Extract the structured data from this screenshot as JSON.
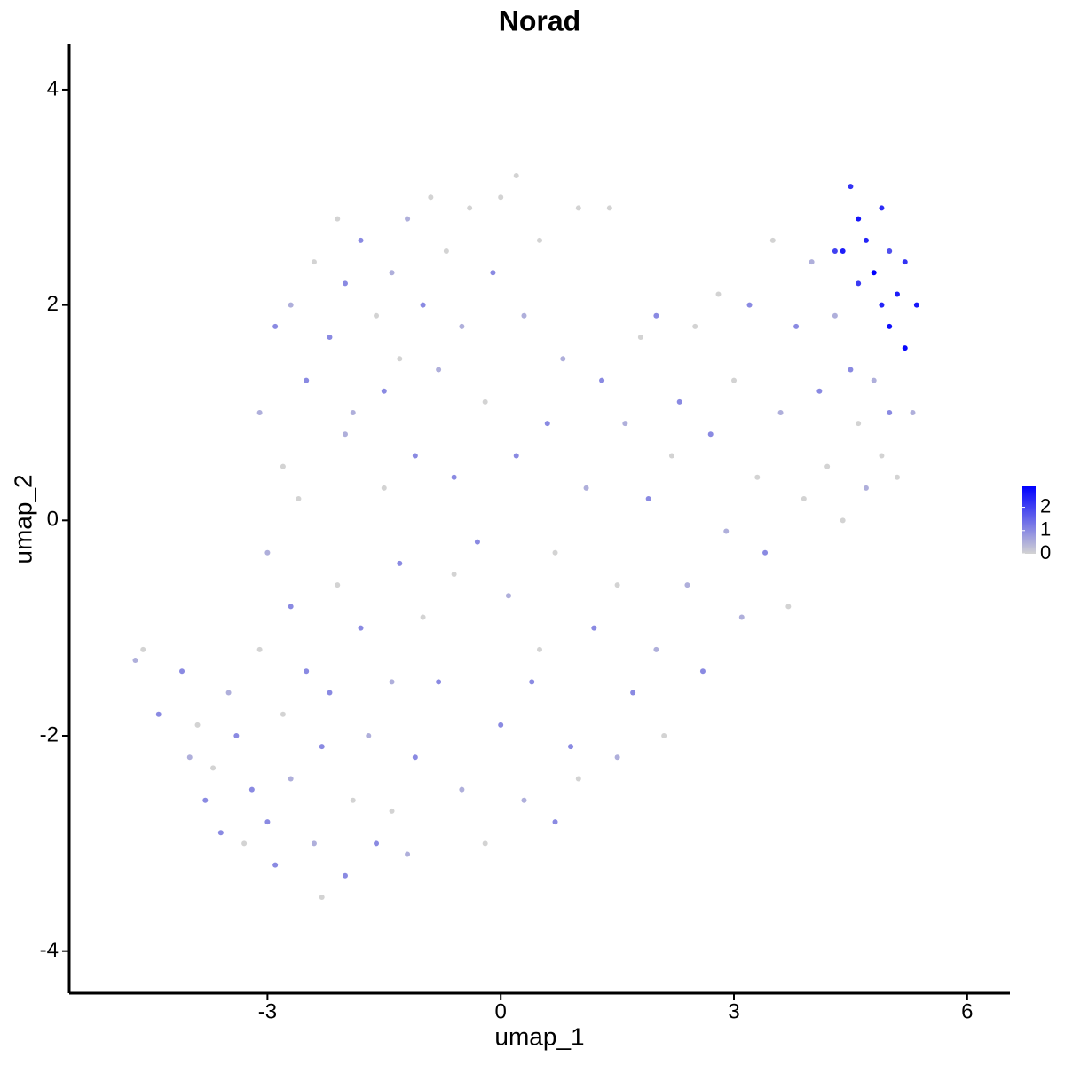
{
  "chart_data": {
    "type": "scatter",
    "title": "Norad",
    "x_label": "umap_1",
    "y_label": "umap_2",
    "xlim": [
      -5.55,
      6.55
    ],
    "ylim": [
      -4.39,
      4.42
    ],
    "xticks": [
      -3,
      0,
      3,
      6
    ],
    "yticks": [
      -4,
      -2,
      0,
      2,
      4
    ],
    "x": [
      -4.7,
      -4.6,
      -4.4,
      -4.1,
      -4.0,
      -3.9,
      -3.8,
      -3.7,
      -3.6,
      -3.5,
      -3.4,
      -3.3,
      -3.2,
      -3.1,
      -3.0,
      -3.0,
      -2.9,
      -2.8,
      -2.7,
      -2.7,
      -2.6,
      -2.5,
      -2.4,
      -2.3,
      -2.3,
      -2.2,
      -2.1,
      -2.0,
      -2.0,
      -1.9,
      -1.8,
      -1.7,
      -1.6,
      -1.5,
      -1.4,
      -1.4,
      -1.3,
      -1.2,
      -1.1,
      -1.0,
      -3.1,
      -2.9,
      -2.8,
      -2.7,
      -2.5,
      -2.4,
      -2.2,
      -2.1,
      -2.0,
      -1.9,
      -1.8,
      -1.6,
      -1.5,
      -1.4,
      -1.3,
      -1.2,
      -1.1,
      -1.0,
      -0.9,
      -0.8,
      -0.7,
      -0.6,
      -0.5,
      -0.4,
      -0.3,
      -0.2,
      -0.1,
      0.0,
      0.1,
      0.2,
      0.2,
      0.3,
      0.4,
      0.5,
      0.6,
      0.7,
      0.8,
      0.9,
      1.0,
      1.1,
      1.2,
      1.3,
      1.4,
      1.5,
      1.6,
      1.7,
      1.8,
      1.9,
      2.0,
      2.0,
      2.1,
      2.2,
      2.3,
      2.4,
      2.5,
      2.6,
      2.7,
      2.8,
      2.9,
      3.0,
      3.1,
      3.2,
      3.3,
      3.4,
      3.5,
      3.6,
      3.7,
      3.8,
      3.9,
      4.0,
      4.1,
      4.2,
      4.3,
      4.4,
      4.5,
      4.6,
      4.7,
      4.8,
      4.9,
      5.0,
      5.1,
      5.3,
      -0.5,
      -0.2,
      0.0,
      0.3,
      0.5,
      0.7,
      1.0,
      1.5,
      -0.8,
      -0.6,
      4.4,
      4.5,
      4.6,
      4.7,
      4.8,
      4.9,
      5.0,
      5.1,
      5.2,
      5.35,
      4.9,
      5.2,
      4.6,
      4.3,
      5.0
    ],
    "y": [
      -1.3,
      -1.2,
      -1.8,
      -1.4,
      -2.2,
      -1.9,
      -2.6,
      -2.3,
      -2.9,
      -1.6,
      -2.0,
      -3.0,
      -2.5,
      -1.2,
      -0.3,
      -2.8,
      -3.2,
      -1.8,
      -0.8,
      -2.4,
      0.2,
      -1.4,
      -3.0,
      -3.5,
      -2.1,
      -1.6,
      -0.6,
      -3.3,
      0.8,
      -2.6,
      -1.0,
      -2.0,
      -3.0,
      0.3,
      -1.5,
      -2.7,
      -0.4,
      -3.1,
      -2.2,
      -0.9,
      1.0,
      1.8,
      0.5,
      2.0,
      1.3,
      2.4,
      1.7,
      2.8,
      2.2,
      1.0,
      2.6,
      1.9,
      1.2,
      2.3,
      1.5,
      2.8,
      0.6,
      2.0,
      3.0,
      1.4,
      2.5,
      0.4,
      1.8,
      2.9,
      -0.2,
      1.1,
      2.3,
      3.0,
      -0.7,
      0.6,
      3.2,
      1.9,
      -1.5,
      2.6,
      0.9,
      -0.3,
      1.5,
      -2.1,
      2.9,
      0.3,
      -1.0,
      1.3,
      2.9,
      -0.6,
      0.9,
      -1.6,
      1.7,
      0.2,
      -1.2,
      1.9,
      -2.0,
      0.6,
      1.1,
      -0.6,
      1.8,
      -1.4,
      0.8,
      2.1,
      -0.1,
      1.3,
      -0.9,
      2.0,
      0.4,
      -0.3,
      2.6,
      1.0,
      -0.8,
      1.8,
      0.2,
      2.4,
      1.2,
      0.5,
      1.9,
      0.0,
      1.4,
      0.9,
      0.3,
      1.3,
      0.6,
      1.0,
      0.4,
      1.0,
      -2.5,
      -3.0,
      -1.9,
      -2.6,
      -1.2,
      -2.8,
      -2.4,
      -2.2,
      -1.5,
      -0.5,
      2.5,
      3.1,
      2.8,
      2.6,
      2.3,
      2.9,
      1.8,
      2.1,
      2.4,
      2.0,
      2.0,
      1.6,
      2.2,
      2.5,
      2.5
    ],
    "expression": [
      0.5,
      0,
      1,
      1,
      0.5,
      0,
      1,
      0,
      1,
      0.5,
      1,
      0,
      1,
      0,
      0.5,
      1,
      1,
      0,
      1,
      0.5,
      0,
      1,
      0.5,
      0,
      1,
      1,
      0,
      1,
      0.5,
      0,
      1,
      0.5,
      1,
      0,
      0.5,
      0,
      1,
      0.5,
      1,
      0,
      0.5,
      1,
      0,
      0.5,
      1,
      0,
      1,
      0,
      1,
      0.5,
      1,
      0,
      1,
      0.5,
      0,
      0.5,
      1,
      1,
      0,
      0.5,
      0,
      1,
      0.5,
      0,
      1,
      0,
      1,
      0,
      0.5,
      1,
      0,
      0.5,
      1,
      0,
      1,
      0,
      0.5,
      1,
      0,
      0.5,
      1,
      1,
      0,
      0,
      0.5,
      1,
      0,
      1,
      0.5,
      1,
      0,
      0,
      1,
      0.5,
      0,
      1,
      1,
      0,
      0.5,
      0,
      0.5,
      1,
      0,
      1,
      0,
      0.5,
      0,
      1,
      0,
      0.5,
      1,
      0,
      0.5,
      0,
      1,
      0,
      0.5,
      0.5,
      0,
      1,
      0,
      0.5,
      0.5,
      0,
      1,
      0.5,
      0,
      1,
      0,
      0.5,
      1,
      0,
      2.5,
      2.2,
      2.6,
      2.4,
      2.9,
      2.3,
      2.7,
      2.5,
      2.2,
      2.6,
      2.4,
      2.8,
      2.1,
      2.0,
      1.8
    ],
    "color_scale": {
      "low": "#d3d3d3",
      "high": "#0000ff",
      "lim": [
        0,
        2.9
      ],
      "ticks": [
        0,
        1,
        2
      ]
    }
  }
}
